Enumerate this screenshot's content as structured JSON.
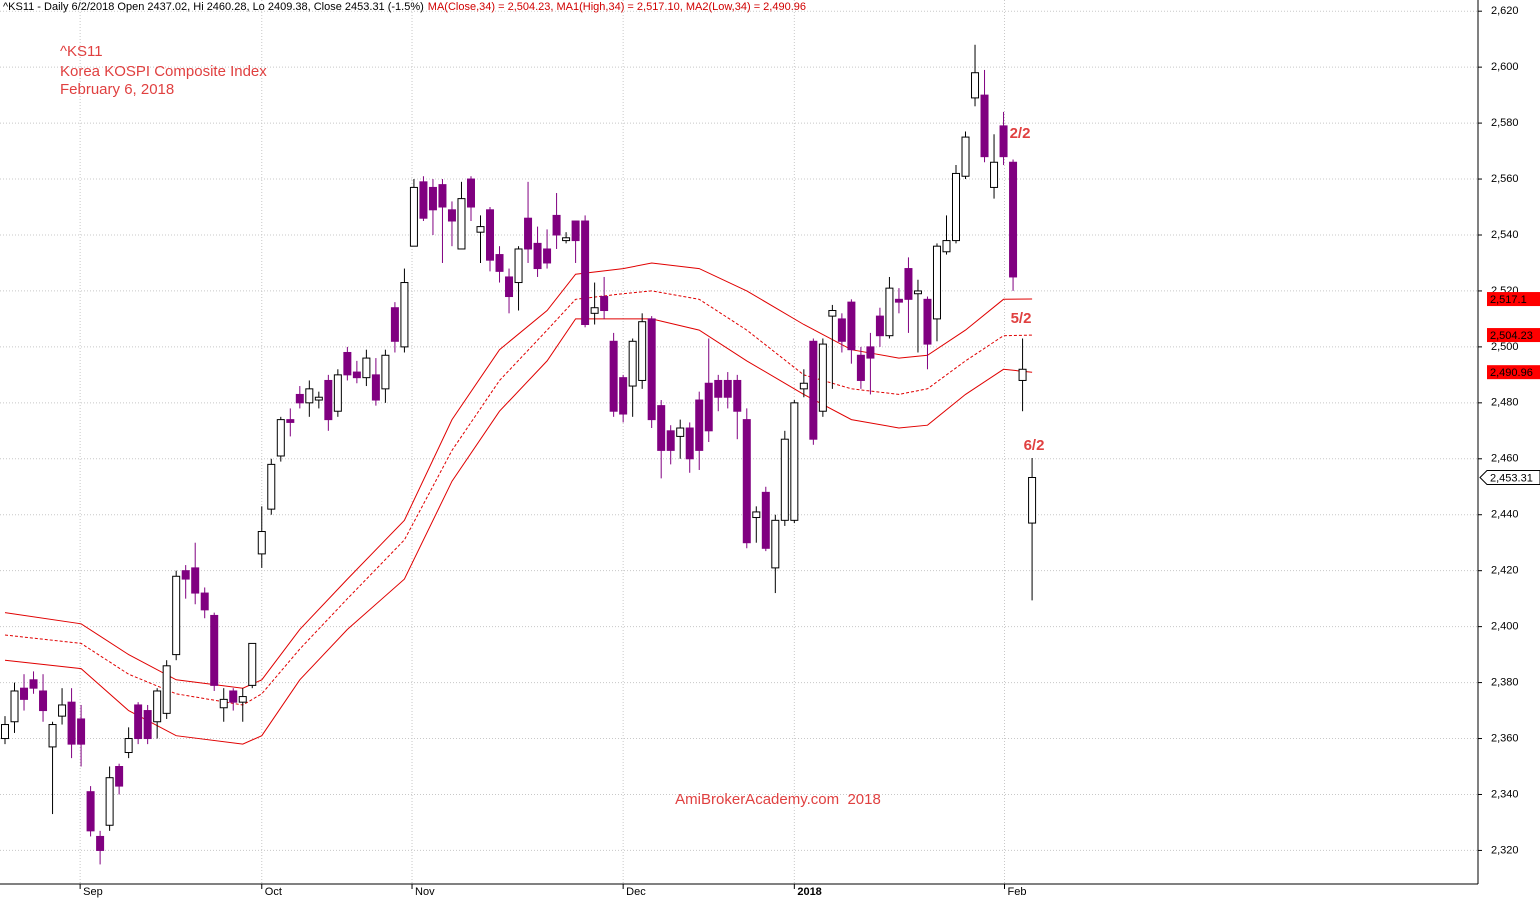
{
  "chart_data": {
    "type": "candlestick",
    "header_text": "^KS11 - Daily 6/2/2018 Open 2437.02, Hi 2460.28, Lo 2409.38, Close 2453.31 (-1.5%)",
    "header_ma_text": "MA(Close,34) = 2,504.23, MA1(High,34) = 2,517.10, MA2(Low,34) = 2,490.96",
    "title": "^KS11",
    "subtitle": "Korea KOSPI Composite Index",
    "date_label": "February 6, 2018",
    "watermark": "AmiBrokerAcademy.com  2018",
    "annotations": [
      "2/2",
      "5/2",
      "6/2"
    ],
    "up_color": "#ffffff",
    "down_color": "#800080",
    "open": [
      2360,
      2366,
      2378,
      2381,
      2377,
      2357,
      2368,
      2373,
      2367,
      2341,
      2325,
      2329,
      2350,
      2355,
      2372,
      2370,
      2366,
      2369,
      2390,
      2420,
      2421,
      2412,
      2404,
      2371,
      2377,
      2373,
      2379,
      2426,
      2442,
      2461,
      2474,
      2483,
      2480,
      2481,
      2488,
      2477,
      2498,
      2491,
      2489,
      2490,
      2485,
      2514,
      2500,
      2536,
      2559,
      2557,
      2558,
      2549,
      2535,
      2560,
      2541,
      2549,
      2533,
      2525,
      2523,
      2546,
      2537,
      2535,
      2547,
      2538,
      2545,
      2545,
      2512,
      2518,
      2502,
      2489,
      2486,
      2488,
      2510,
      2479,
      2470,
      2468,
      2471,
      2481,
      2487,
      2488,
      2488,
      2488,
      2474,
      2439,
      2448,
      2421,
      2438,
      2438,
      2485,
      2502,
      2477,
      2511,
      2510,
      2516,
      2497,
      2500,
      2511,
      2504,
      2517,
      2528,
      2519,
      2517,
      2510,
      2534,
      2538,
      2561,
      2589,
      2590,
      2557,
      2579,
      2566,
      2488,
      2437.02
    ],
    "high": [
      2368,
      2380,
      2383,
      2384,
      2383,
      2366,
      2378,
      2378,
      2372,
      2343,
      2327,
      2350,
      2351,
      2364,
      2373,
      2372,
      2378,
      2388,
      2420,
      2422,
      2430,
      2414,
      2405,
      2378,
      2378,
      2378,
      2394,
      2443,
      2460,
      2475,
      2478,
      2486,
      2488,
      2484,
      2490,
      2492,
      2500,
      2495,
      2499,
      2496,
      2499,
      2516,
      2528,
      2560,
      2561,
      2560,
      2560,
      2552,
      2559,
      2561,
      2547,
      2550,
      2536,
      2528,
      2536,
      2559,
      2543,
      2542,
      2555,
      2541,
      2545,
      2547,
      2523,
      2525,
      2505,
      2490,
      2503,
      2512,
      2511,
      2481,
      2472,
      2474,
      2473,
      2484,
      2503,
      2490,
      2491,
      2490,
      2478,
      2443,
      2450,
      2440,
      2470,
      2481,
      2492,
      2503,
      2503,
      2515,
      2512,
      2517,
      2500,
      2505,
      2514,
      2525,
      2521,
      2532,
      2524,
      2518,
      2537,
      2547,
      2565,
      2577,
      2608,
      2599,
      2576,
      2584,
      2567,
      2503,
      2460.28
    ],
    "low": [
      2358,
      2362,
      2370,
      2376,
      2366,
      2333,
      2365,
      2353,
      2350,
      2325,
      2315,
      2327,
      2340,
      2353,
      2358,
      2358,
      2360,
      2367,
      2388,
      2410,
      2408,
      2403,
      2377,
      2366,
      2370,
      2366,
      2378,
      2421,
      2440,
      2459,
      2468,
      2478,
      2475,
      2478,
      2470,
      2475,
      2488,
      2487,
      2486,
      2479,
      2480,
      2498,
      2498,
      2536,
      2545,
      2540,
      2530,
      2536,
      2535,
      2545,
      2530,
      2527,
      2523,
      2512,
      2513,
      2530,
      2525,
      2528,
      2535,
      2537,
      2530,
      2507,
      2508,
      2510,
      2475,
      2473,
      2475,
      2485,
      2471,
      2453,
      2458,
      2460,
      2455,
      2456,
      2466,
      2477,
      2478,
      2467,
      2428,
      2430,
      2427,
      2412,
      2436,
      2437,
      2482,
      2465,
      2475,
      2485,
      2498,
      2494,
      2485,
      2483,
      2500,
      2503,
      2512,
      2505,
      2498,
      2492,
      2502,
      2533,
      2537,
      2560,
      2586,
      2566,
      2553,
      2565,
      2520,
      2477,
      2409.38
    ],
    "close": [
      2365,
      2377,
      2374,
      2378,
      2370,
      2365,
      2372,
      2358,
      2358,
      2327,
      2320,
      2346,
      2343,
      2360,
      2360,
      2360,
      2377,
      2386,
      2418,
      2417,
      2412,
      2406,
      2379,
      2374,
      2373,
      2375,
      2394,
      2434,
      2458,
      2474,
      2473,
      2480,
      2485,
      2482,
      2474,
      2490,
      2490,
      2489,
      2496,
      2481,
      2497,
      2502,
      2523,
      2557,
      2546,
      2549,
      2550,
      2545,
      2553,
      2550,
      2543,
      2531,
      2527,
      2518,
      2535,
      2535,
      2528,
      2530,
      2540,
      2539,
      2538,
      2508,
      2514,
      2513,
      2477,
      2476,
      2502,
      2509,
      2474,
      2463,
      2463,
      2471,
      2460,
      2463,
      2470,
      2482,
      2482,
      2477,
      2430,
      2441,
      2428,
      2438,
      2467,
      2480,
      2487,
      2467,
      2501,
      2513,
      2502,
      2499,
      2488,
      2496,
      2504,
      2521,
      2516,
      2517,
      2520,
      2501,
      2536,
      2538,
      2562,
      2575,
      2598,
      2568,
      2566,
      2568,
      2525,
      2492,
      2453.31
    ],
    "close_label": "2,453.31",
    "series": [
      {
        "name": "MA1(High,34)",
        "color": "#e00000",
        "dashed": false,
        "last_label": "2,517.1",
        "x": [
          0,
          8,
          13,
          18,
          25,
          27,
          31,
          36,
          42,
          47,
          52,
          57,
          60,
          65,
          68,
          73,
          78,
          84,
          89,
          94,
          97,
          101,
          105,
          108
        ],
        "values": [
          2405,
          2401,
          2390,
          2381,
          2378,
          2381,
          2399,
          2417,
          2438,
          2474,
          2499,
          2513,
          2526,
          2528,
          2530,
          2528,
          2520,
          2508,
          2499,
          2496,
          2497,
          2506,
          2517,
          2517.1
        ]
      },
      {
        "name": "MA(Close,34)",
        "color": "#e00000",
        "dashed": true,
        "last_label": "2,504.23",
        "x": [
          0,
          8,
          13,
          18,
          25,
          27,
          31,
          36,
          42,
          47,
          52,
          57,
          60,
          65,
          68,
          73,
          78,
          84,
          89,
          94,
          97,
          101,
          105,
          108
        ],
        "values": [
          2397,
          2394,
          2383,
          2376,
          2372,
          2376,
          2392,
          2410,
          2431,
          2463,
          2488,
          2506,
          2517,
          2519,
          2520,
          2517,
          2506,
          2490,
          2485,
          2483,
          2485,
          2495,
          2504,
          2504.23
        ]
      },
      {
        "name": "MA2(Low,34)",
        "color": "#e00000",
        "dashed": false,
        "last_label": "2,490.96",
        "x": [
          0,
          8,
          13,
          18,
          25,
          27,
          31,
          36,
          42,
          47,
          52,
          57,
          60,
          65,
          68,
          73,
          78,
          84,
          89,
          94,
          97,
          101,
          105,
          108
        ],
        "values": [
          2388,
          2385,
          2370,
          2361,
          2358,
          2361,
          2381,
          2399,
          2417,
          2452,
          2477,
          2495,
          2510,
          2510,
          2510,
          2506,
          2495,
          2483,
          2474,
          2471,
          2472,
          2483,
          2492,
          2490.96
        ]
      }
    ],
    "xlim": [
      -0.5,
      155
    ],
    "xticks": [
      {
        "value": 7.9,
        "label": "Sep"
      },
      {
        "value": 27,
        "label": "Oct"
      },
      {
        "value": 42.8,
        "label": "Nov"
      },
      {
        "value": 65,
        "label": "Dec"
      },
      {
        "value": 83,
        "label": "2018"
      },
      {
        "value": 105.1,
        "label": "Feb"
      }
    ],
    "ylim": [
      2308,
      2624
    ],
    "yticks": [
      {
        "value": 2320,
        "label": "2,320"
      },
      {
        "value": 2340,
        "label": "2,340"
      },
      {
        "value": 2360,
        "label": "2,360"
      },
      {
        "value": 2380,
        "label": "2,380"
      },
      {
        "value": 2400,
        "label": "2,400"
      },
      {
        "value": 2420,
        "label": "2,420"
      },
      {
        "value": 2440,
        "label": "2,440"
      },
      {
        "value": 2460,
        "label": "2,460"
      },
      {
        "value": 2480,
        "label": "2,480"
      },
      {
        "value": 2500,
        "label": "2,500"
      },
      {
        "value": 2520,
        "label": "2,520"
      },
      {
        "value": 2540,
        "label": "2,540"
      },
      {
        "value": 2560,
        "label": "2,560"
      },
      {
        "value": 2580,
        "label": "2,580"
      },
      {
        "value": 2600,
        "label": "2,600"
      },
      {
        "value": 2620,
        "label": "2,620"
      }
    ],
    "grid": true
  }
}
